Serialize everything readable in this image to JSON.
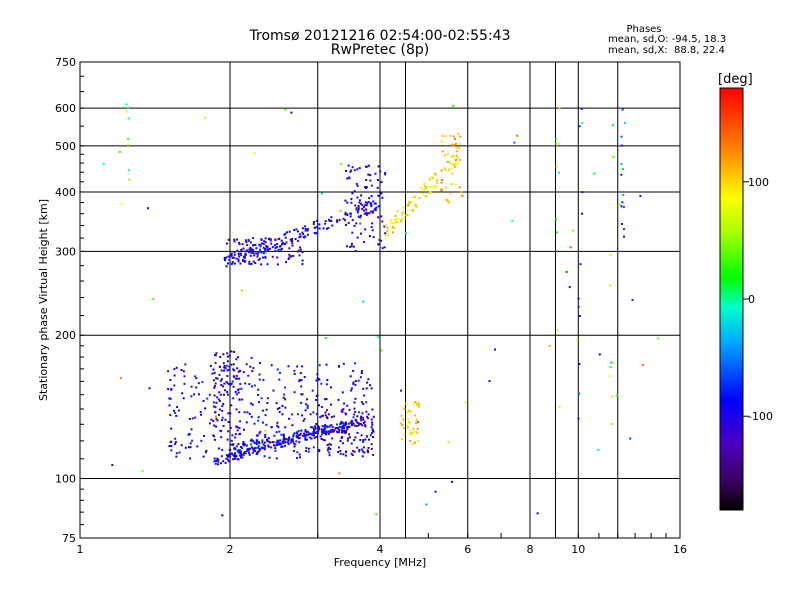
{
  "chart_data": {
    "type": "scatter",
    "title": "Tromsø 20121216 02:54:00-02:55:43",
    "subtitle": "RwPretec (8p)",
    "xlabel": "Frequency [MHz]",
    "ylabel": "Stationary phase Virtual Height [km]",
    "x_scale": "log2",
    "y_scale": "log",
    "xlim": [
      1,
      16
    ],
    "ylim": [
      75,
      750
    ],
    "x_ticks": [
      1,
      2,
      4,
      6,
      8,
      10,
      16
    ],
    "x_tick_labels": [
      "1",
      "2",
      "4",
      "6",
      "8",
      "10",
      "16"
    ],
    "y_ticks": [
      75,
      100,
      200,
      300,
      400,
      500,
      600,
      750
    ],
    "y_tick_labels": [
      "75",
      "100",
      "200",
      "300",
      "400",
      "500",
      "600",
      "750"
    ],
    "grid": true,
    "stats": {
      "heading": "Phases",
      "line_o": "mean, sd,O: -94.5, 18.3",
      "line_x": "mean, sd,X:  88.8, 22.4"
    },
    "colorbar": {
      "label": "[deg]",
      "range": [
        -180,
        180
      ],
      "ticks": [
        100,
        0,
        -100
      ],
      "tick_labels": [
        "100",
        "0",
        "-100"
      ]
    },
    "traces": [
      {
        "kind": "curve",
        "x0": 1.85,
        "x1": 3.9,
        "y0": 108,
        "y1": 135,
        "phase": -100,
        "n": 180,
        "jitter": 0.02
      },
      {
        "kind": "curve",
        "x0": 2.0,
        "x1": 3.6,
        "y0": 115,
        "y1": 130,
        "phase": -90,
        "n": 120,
        "jitter": 0.025
      },
      {
        "kind": "cloud",
        "x0": 1.5,
        "x1": 3.9,
        "y0": 110,
        "y1": 175,
        "phase": -95,
        "n": 380
      },
      {
        "kind": "cloud",
        "x0": 1.85,
        "x1": 2.1,
        "y0": 120,
        "y1": 185,
        "phase": -110,
        "n": 90
      },
      {
        "kind": "cloud",
        "x0": 2.9,
        "x1": 3.9,
        "y0": 112,
        "y1": 140,
        "phase": -130,
        "n": 80
      },
      {
        "kind": "cloud",
        "x0": 4.4,
        "x1": 4.8,
        "y0": 118,
        "y1": 145,
        "phase": 100,
        "n": 40
      },
      {
        "kind": "curve",
        "x0": 1.95,
        "x1": 4.0,
        "y0": 285,
        "y1": 380,
        "phase": -95,
        "n": 150,
        "jitter": 0.03
      },
      {
        "kind": "cloud",
        "x0": 1.95,
        "x1": 2.8,
        "y0": 280,
        "y1": 320,
        "phase": -100,
        "n": 110
      },
      {
        "kind": "cloud",
        "x0": 3.4,
        "x1": 4.1,
        "y0": 300,
        "y1": 460,
        "phase": -110,
        "n": 90
      },
      {
        "kind": "curve",
        "x0": 4.1,
        "x1": 5.8,
        "y0": 330,
        "y1": 480,
        "phase": 95,
        "n": 90,
        "jitter": 0.04
      },
      {
        "kind": "cloud",
        "x0": 5.3,
        "x1": 5.9,
        "y0": 380,
        "y1": 530,
        "phase": 110,
        "n": 40
      },
      {
        "kind": "column",
        "x": 12.3,
        "y0": 320,
        "y1": 620,
        "phase": -60,
        "n": 14
      },
      {
        "kind": "column",
        "x": 9.1,
        "y0": 140,
        "y1": 600,
        "phase": 40,
        "n": 10
      },
      {
        "kind": "column",
        "x": 1.25,
        "y0": 340,
        "y1": 620,
        "phase": 60,
        "n": 8
      },
      {
        "kind": "column",
        "x": 10.1,
        "y0": 130,
        "y1": 600,
        "phase": -80,
        "n": 12
      },
      {
        "kind": "column",
        "x": 11.7,
        "y0": 130,
        "y1": 600,
        "phase": 50,
        "n": 10
      },
      {
        "kind": "scatter",
        "x0": 1.1,
        "x1": 15.5,
        "y0": 78,
        "y1": 650,
        "phase": 0,
        "n": 60
      }
    ]
  }
}
